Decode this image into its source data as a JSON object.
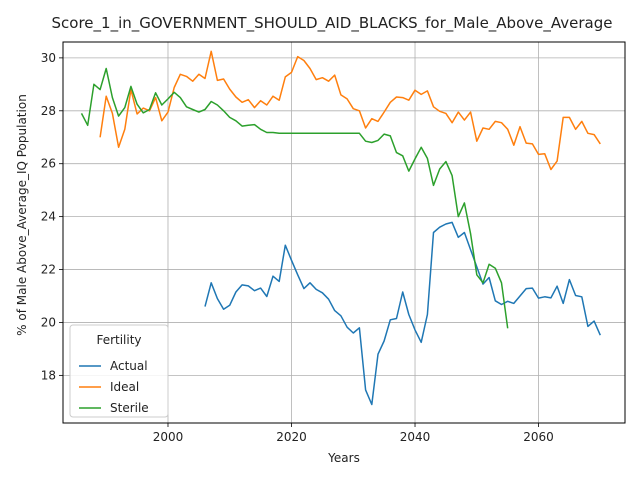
{
  "chart_data": {
    "type": "line",
    "title": "Score_1_in_GOVERNMENT_SHOULD_AID_BLACKS_for_Male_Above_Average",
    "xlabel": "Years",
    "ylabel": "% of Male Above_Average_IQ Population",
    "xlim": [
      1983,
      2074
    ],
    "ylim": [
      16.2,
      30.6
    ],
    "xticks": [
      2000,
      2020,
      2040,
      2060
    ],
    "yticks": [
      18,
      20,
      22,
      24,
      26,
      28,
      30
    ],
    "grid": true,
    "legend": {
      "title": "Fertility",
      "placement": "lower-left"
    },
    "series": [
      {
        "name": "Actual",
        "color": "#1f77b4",
        "x": [
          2006,
          2007,
          2008,
          2009,
          2010,
          2011,
          2012,
          2013,
          2014,
          2015,
          2016,
          2017,
          2018,
          2019,
          2020,
          2021,
          2022,
          2023,
          2024,
          2025,
          2026,
          2027,
          2028,
          2029,
          2030,
          2031,
          2032,
          2033,
          2034,
          2035,
          2036,
          2037,
          2038,
          2039,
          2040,
          2041,
          2042,
          2043,
          2044,
          2045,
          2046,
          2047,
          2048,
          2049,
          2050,
          2051,
          2052,
          2053,
          2054,
          2055,
          2056,
          2057,
          2058,
          2059,
          2060,
          2061,
          2062,
          2063,
          2064,
          2065,
          2066,
          2067,
          2068,
          2069,
          2070
        ],
        "y": [
          20.6,
          21.5,
          20.9,
          20.5,
          20.65,
          21.15,
          21.42,
          21.38,
          21.2,
          21.3,
          20.98,
          21.75,
          21.55,
          22.92,
          22.35,
          21.8,
          21.28,
          21.5,
          21.25,
          21.12,
          20.88,
          20.45,
          20.25,
          19.82,
          19.6,
          19.8,
          17.45,
          16.9,
          18.8,
          19.3,
          20.1,
          20.15,
          21.15,
          20.3,
          19.72,
          19.25,
          20.3,
          23.4,
          23.6,
          23.72,
          23.78,
          23.22,
          23.4,
          22.75,
          22.1,
          21.45,
          21.7,
          20.82,
          20.68,
          20.8,
          20.72,
          21.0,
          21.28,
          21.3,
          20.92,
          20.97,
          20.93,
          21.37,
          20.72,
          21.62,
          21.02,
          20.97,
          19.85,
          20.05,
          19.52
        ]
      },
      {
        "name": "Ideal",
        "color": "#ff7f0e",
        "x": [
          1989,
          1990,
          1991,
          1992,
          1993,
          1994,
          1995,
          1996,
          1997,
          1998,
          1999,
          2000,
          2001,
          2002,
          2003,
          2004,
          2005,
          2006,
          2007,
          2008,
          2009,
          2010,
          2011,
          2012,
          2013,
          2014,
          2015,
          2016,
          2017,
          2018,
          2019,
          2020,
          2021,
          2022,
          2023,
          2024,
          2025,
          2026,
          2027,
          2028,
          2029,
          2030,
          2031,
          2032,
          2033,
          2034,
          2035,
          2036,
          2037,
          2038,
          2039,
          2040,
          2041,
          2042,
          2043,
          2044,
          2045,
          2046,
          2047,
          2048,
          2049,
          2050,
          2051,
          2052,
          2053,
          2054,
          2055,
          2056,
          2057,
          2058,
          2059,
          2060,
          2061,
          2062,
          2063,
          2064,
          2065,
          2066,
          2067,
          2068,
          2069,
          2070
        ],
        "y": [
          27.0,
          28.55,
          27.9,
          26.62,
          27.3,
          28.8,
          27.88,
          28.1,
          28.0,
          28.5,
          27.62,
          27.95,
          28.88,
          29.38,
          29.3,
          29.12,
          29.38,
          29.22,
          30.25,
          29.15,
          29.2,
          28.82,
          28.52,
          28.32,
          28.42,
          28.12,
          28.38,
          28.22,
          28.55,
          28.4,
          29.28,
          29.45,
          30.05,
          29.9,
          29.6,
          29.18,
          29.25,
          29.12,
          29.35,
          28.6,
          28.45,
          28.08,
          28.0,
          27.35,
          27.7,
          27.6,
          27.95,
          28.32,
          28.52,
          28.5,
          28.4,
          28.78,
          28.62,
          28.75,
          28.15,
          27.98,
          27.9,
          27.55,
          27.95,
          27.65,
          27.95,
          26.85,
          27.35,
          27.3,
          27.6,
          27.55,
          27.3,
          26.7,
          27.4,
          26.78,
          26.75,
          26.35,
          26.38,
          25.78,
          26.1,
          27.75,
          27.75,
          27.3,
          27.6,
          27.15,
          27.1,
          26.75
        ]
      },
      {
        "name": "Sterile",
        "color": "#2ca02c",
        "x": [
          1986,
          1987,
          1988,
          1989,
          1990,
          1991,
          1992,
          1993,
          1994,
          1995,
          1996,
          1997,
          1998,
          1999,
          2000,
          2001,
          2002,
          2003,
          2004,
          2005,
          2006,
          2007,
          2008,
          2009,
          2010,
          2011,
          2012,
          2013,
          2014,
          2015,
          2016,
          2017,
          2018,
          2019,
          2020,
          2021,
          2022,
          2023,
          2024,
          2025,
          2026,
          2027,
          2028,
          2029,
          2030,
          2031,
          2032,
          2033,
          2034,
          2035,
          2036,
          2037,
          2038,
          2039,
          2040,
          2041,
          2042,
          2043,
          2044,
          2045,
          2046,
          2047,
          2048,
          2049,
          2050,
          2051,
          2052,
          2053,
          2054,
          2055
        ],
        "y": [
          27.9,
          27.45,
          29.0,
          28.8,
          29.6,
          28.5,
          27.8,
          28.12,
          28.92,
          28.25,
          27.92,
          28.05,
          28.68,
          28.22,
          28.45,
          28.7,
          28.5,
          28.15,
          28.05,
          27.95,
          28.05,
          28.35,
          28.22,
          28.0,
          27.75,
          27.62,
          27.42,
          27.45,
          27.48,
          27.3,
          27.18,
          27.18,
          27.15,
          27.15,
          27.15,
          27.15,
          27.15,
          27.15,
          27.15,
          27.15,
          27.15,
          27.15,
          27.15,
          27.15,
          27.15,
          27.15,
          26.85,
          26.8,
          26.88,
          27.12,
          27.05,
          26.42,
          26.3,
          25.72,
          26.18,
          26.62,
          26.2,
          25.18,
          25.8,
          26.08,
          25.55,
          24.0,
          24.52,
          23.35,
          21.8,
          21.5,
          22.2,
          22.05,
          21.5,
          19.78
        ]
      }
    ]
  }
}
